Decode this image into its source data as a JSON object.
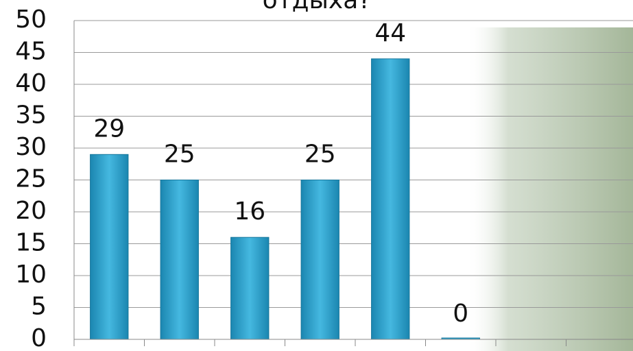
{
  "chart_data": {
    "type": "bar",
    "title": "отдыха?",
    "categories": [
      null,
      null,
      null,
      null,
      null,
      null,
      null,
      null
    ],
    "values": [
      29,
      25,
      16,
      25,
      44,
      0,
      null,
      null
    ],
    "color": "#2ea3cc",
    "ylim": [
      0,
      50
    ],
    "yticks": [
      0,
      5,
      10,
      15,
      20,
      25,
      30,
      35,
      40,
      45,
      50
    ],
    "grid": true
  }
}
